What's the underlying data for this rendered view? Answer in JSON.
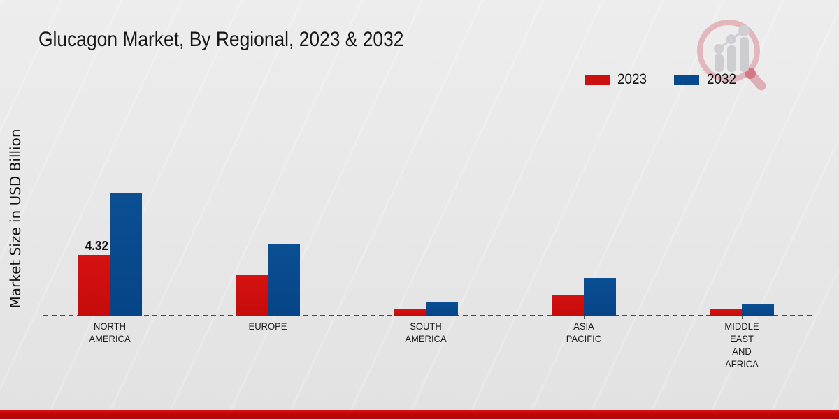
{
  "chart_data": {
    "type": "bar",
    "title": "Glucagon Market, By Regional, 2023 & 2032",
    "ylabel": "Market Size in USD Billion",
    "xlabel": "",
    "categories": [
      "North America",
      "Europe",
      "South America",
      "Asia Pacific",
      "Middle East and Africa"
    ],
    "category_label_lines": [
      "NORTH\nAMERICA",
      "EUROPE",
      "SOUTH\nAMERICA",
      "ASIA\nPACIFIC",
      "MIDDLE\nEAST\nAND\nAFRICA"
    ],
    "series": [
      {
        "name": "2023",
        "color": "#cc0f0f",
        "values": [
          4.32,
          2.88,
          0.5,
          1.49,
          0.45
        ]
      },
      {
        "name": "2032",
        "color": "#084a8e",
        "values": [
          8.69,
          5.12,
          0.99,
          2.68,
          0.84
        ]
      }
    ],
    "value_labels": [
      {
        "category_index": 0,
        "series": "2023",
        "text": "4.32"
      }
    ],
    "ylim": [
      0,
      9.2
    ],
    "grid": false,
    "baseline_style": "dashed",
    "legend_position": "top-right"
  },
  "colors": {
    "series_2023_red": "#cc0f0f",
    "series_2032_blue": "#084a8e",
    "footer_band_red": "#c00707",
    "background_gray": "#e8e8e8"
  },
  "watermark": {
    "description": "magnifying-glass-bar-chart-logo"
  }
}
